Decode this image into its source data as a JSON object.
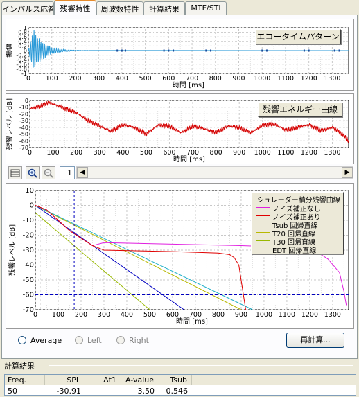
{
  "tabs": [
    {
      "label": "インパルス応答",
      "active": false
    },
    {
      "label": "残響特性",
      "active": true
    },
    {
      "label": "周波数特性",
      "active": false
    },
    {
      "label": "計算結果",
      "active": false
    },
    {
      "label": "MTF/STI",
      "active": false
    }
  ],
  "charts": {
    "echo": {
      "ylabel": "振幅",
      "yticks": [
        "1",
        "0.8",
        "0.6",
        "0.4",
        "0.2",
        "0",
        "-0.2",
        "-0.4",
        "-0.6",
        "-0.8",
        "-1"
      ],
      "xticks": [
        "0",
        "100",
        "200",
        "300",
        "400",
        "500",
        "600",
        "700",
        "800",
        "900",
        "1000",
        "1100",
        "1200",
        "1300"
      ],
      "xlabel": "時間 [ms]",
      "legend": "エコータイムパターン"
    },
    "energy": {
      "ylabel": "残響レベル [dB]",
      "yticks": [
        "0",
        "-10",
        "-20",
        "-30",
        "-40",
        "-50",
        "-60",
        "-70"
      ],
      "xticks": [
        "0",
        "100",
        "200",
        "300",
        "400",
        "500",
        "600",
        "700",
        "800",
        "900",
        "1000",
        "1100",
        "1200",
        "1300"
      ],
      "xlabel": "時間 [ms]",
      "legend": "残響エネルギー曲線"
    },
    "decay": {
      "ylabel": "残響レベル [dB]",
      "yticks": [
        "10",
        "0",
        "-10",
        "-20",
        "-30",
        "-40",
        "-50",
        "-60",
        "-70"
      ],
      "xticks": [
        "0",
        "100",
        "200",
        "300",
        "400",
        "500",
        "600",
        "700",
        "800",
        "900",
        "1000",
        "1100",
        "1200",
        "1300"
      ],
      "xlabel": "時間 [ms]"
    }
  },
  "colors": {
    "echo": "#2a9ad8",
    "energy": "#d40000",
    "without_noise": "#e020e0",
    "with_noise": "#e00000",
    "tsub": "#0000c0",
    "t20": "#b8b800",
    "t30": "#98b800",
    "edt": "#20b0c8"
  },
  "chart_data": [
    {
      "type": "line",
      "title": "エコータイムパターン",
      "ylabel": "振幅",
      "xlabel": "時間 [ms]",
      "xlim": [
        0,
        1370
      ],
      "ylim": [
        -1,
        1
      ],
      "series": [
        {
          "name": "エコータイムパターン",
          "note_points": [
            [
              20,
              0.9
            ],
            [
              70,
              -0.95
            ],
            [
              100,
              0.7
            ],
            [
              150,
              0.2
            ],
            [
              200,
              0.05
            ],
            [
              300,
              0
            ],
            [
              700,
              0
            ],
            [
              1300,
              0
            ]
          ]
        }
      ]
    },
    {
      "type": "line",
      "title": "残響エネルギー曲線",
      "ylabel": "残響レベル [dB]",
      "xlabel": "時間 [ms]",
      "xlim": [
        0,
        1370
      ],
      "ylim": [
        -70,
        0
      ],
      "series": [
        {
          "name": "残響エネルギー曲線",
          "x": [
            0,
            50,
            80,
            100,
            150,
            200,
            250,
            300,
            350,
            400,
            450,
            500,
            550,
            600,
            650,
            700,
            750,
            800,
            850,
            900,
            950,
            1000,
            1050,
            1100,
            1150,
            1200,
            1250,
            1300,
            1350,
            1370
          ],
          "y": [
            -12,
            -8,
            -3,
            -5,
            -12,
            -18,
            -30,
            -38,
            -46,
            -36,
            -40,
            -50,
            -37,
            -38,
            -48,
            -38,
            -42,
            -48,
            -38,
            -40,
            -48,
            -37,
            -35,
            -44,
            -40,
            -36,
            -45,
            -40,
            -52,
            -61
          ]
        }
      ]
    },
    {
      "type": "line",
      "title": "シュレーダー積分残響曲線",
      "ylabel": "残響レベル [dB]",
      "xlabel": "時間 [ms]",
      "xlim": [
        0,
        1370
      ],
      "ylim": [
        -70,
        10
      ],
      "series": [
        {
          "name": "ノイズ補正なし",
          "x": [
            0,
            50,
            100,
            150,
            200,
            250,
            300,
            600,
            900,
            1100,
            1200,
            1250,
            1280,
            1330,
            1350,
            1360
          ],
          "y": [
            0,
            -3,
            -10,
            -17,
            -22,
            -27,
            -25,
            -26,
            -27,
            -28,
            -29,
            -33,
            -36,
            -45,
            -58,
            -67
          ]
        },
        {
          "name": "ノイズ補正あり",
          "x": [
            0,
            50,
            100,
            150,
            200,
            250,
            300,
            600,
            800,
            850,
            870,
            890,
            900,
            910,
            920
          ],
          "y": [
            0,
            -3,
            -10,
            -17,
            -22,
            -27,
            -30,
            -31,
            -32,
            -33,
            -35,
            -40,
            -50,
            -60,
            -70
          ]
        },
        {
          "name": "Tsub 回帰直線",
          "x": [
            0,
            650
          ],
          "y": [
            0,
            -70
          ]
        },
        {
          "name": "T20 回帰直線",
          "x": [
            0,
            900
          ],
          "y": [
            0,
            -70
          ]
        },
        {
          "name": "T30 回帰直線",
          "x": [
            0,
            500
          ],
          "y": [
            -5,
            -70
          ]
        },
        {
          "name": "EDT 回帰直線",
          "x": [
            0,
            950
          ],
          "y": [
            0,
            -70
          ]
        }
      ]
    }
  ],
  "legend_title": "シュレーダー積分残響曲線",
  "legend_items": [
    "ノイズ補正なし",
    "ノイズ補正あり",
    "Tsub 回帰直線",
    "T20 回帰直線",
    "T30 回帰直線",
    "EDT 回帰直線"
  ],
  "toolbar": {
    "page": "1"
  },
  "options": {
    "average": "Average",
    "left": "Left",
    "right": "Right",
    "recalc": "再計算..."
  },
  "results": {
    "title": "計算結果",
    "headers": [
      "Freq.",
      "SPL",
      "Δt1",
      "A-value",
      "Tsub"
    ],
    "row": [
      "50",
      "-30.91",
      "",
      "3.50",
      "0.546"
    ]
  }
}
